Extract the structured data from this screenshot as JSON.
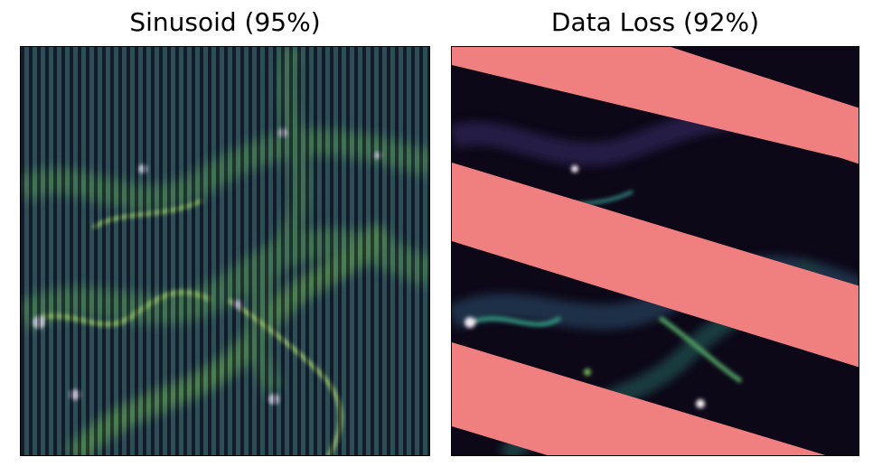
{
  "panels": [
    {
      "title": "Sinusoid (95%)",
      "corruption_type": "sinusoid",
      "corruption_percent": 95
    },
    {
      "title": "Data Loss (92%)",
      "corruption_type": "data-loss",
      "corruption_percent": 92,
      "mask_color": "#f08080"
    }
  ],
  "colors": {
    "background": "#ffffff",
    "field_base": "#25133a",
    "filament": "#5aa03a",
    "highlight": "#f0d8f0",
    "stripe_light": "#3e6f66",
    "mask": "#f08080"
  }
}
